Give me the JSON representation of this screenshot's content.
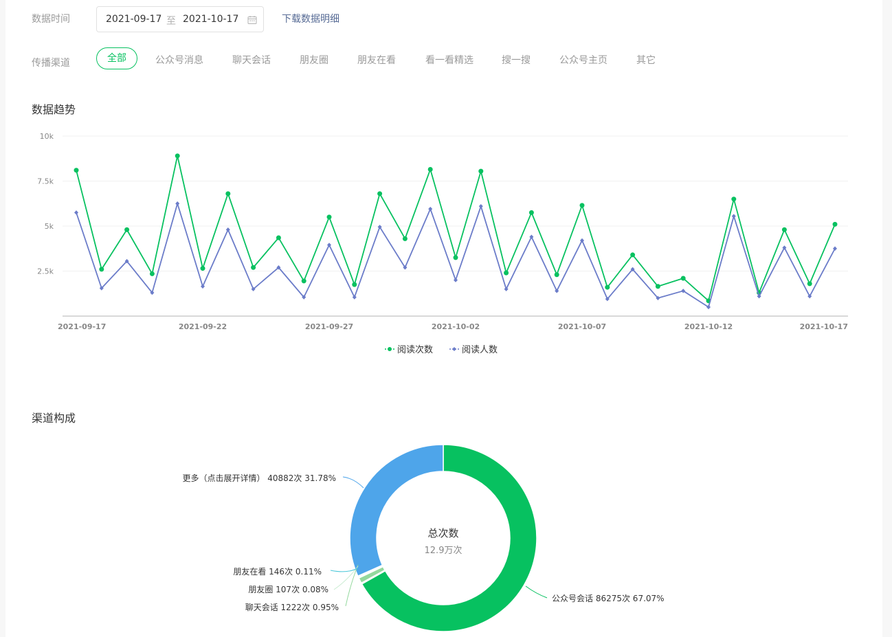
{
  "filters": {
    "time_label": "数据时间",
    "date_start": "2021-09-17",
    "date_separator": "至",
    "date_end": "2021-10-17",
    "download_link": "下载数据明细",
    "channel_label": "传播渠道",
    "channels": [
      "全部",
      "公众号消息",
      "聊天会话",
      "朋友圈",
      "朋友在看",
      "看一看精选",
      "搜一搜",
      "公众号主页",
      "其它"
    ],
    "active_channel": "全部"
  },
  "trend": {
    "title": "数据趋势"
  },
  "composition": {
    "title": "渠道构成"
  },
  "colors": {
    "accent": "#07c160",
    "read_count": "#07c160",
    "reader_count": "#6b7cc9",
    "link": "#576b95",
    "more": "#4ea5ea"
  },
  "chart_data": [
    {
      "type": "line",
      "x": [
        "2021-09-17",
        "2021-09-18",
        "2021-09-19",
        "2021-09-20",
        "2021-09-21",
        "2021-09-22",
        "2021-09-23",
        "2021-09-24",
        "2021-09-25",
        "2021-09-26",
        "2021-09-27",
        "2021-09-28",
        "2021-09-29",
        "2021-09-30",
        "2021-10-01",
        "2021-10-02",
        "2021-10-03",
        "2021-10-04",
        "2021-10-05",
        "2021-10-06",
        "2021-10-07",
        "2021-10-08",
        "2021-10-09",
        "2021-10-10",
        "2021-10-11",
        "2021-10-12",
        "2021-10-13",
        "2021-10-14",
        "2021-10-15",
        "2021-10-16",
        "2021-10-17"
      ],
      "x_tick_labels": [
        "2021-09-17",
        "2021-09-22",
        "2021-09-27",
        "2021-10-02",
        "2021-10-07",
        "2021-10-12",
        "2021-10-17"
      ],
      "y_tick_labels": [
        "2.5k",
        "5k",
        "7.5k",
        "10k"
      ],
      "ylim": [
        0,
        10000
      ],
      "grid": true,
      "legend_position": "bottom",
      "series": [
        {
          "name": "阅读次数",
          "color": "#07c160",
          "marker": "circle",
          "values": [
            8100,
            2600,
            4800,
            2350,
            8900,
            2650,
            6800,
            2700,
            4350,
            1950,
            5500,
            1750,
            6800,
            4300,
            8150,
            3250,
            8050,
            2400,
            5750,
            2300,
            6150,
            1600,
            3400,
            1650,
            2100,
            850,
            6500,
            1300,
            4800,
            1800,
            5100
          ]
        },
        {
          "name": "阅读人数",
          "color": "#6b7cc9",
          "marker": "diamond",
          "values": [
            5750,
            1550,
            3050,
            1300,
            6250,
            1650,
            4800,
            1500,
            2700,
            1050,
            3950,
            1050,
            4950,
            2700,
            5950,
            2000,
            6100,
            1500,
            4400,
            1400,
            4200,
            950,
            2600,
            1000,
            1400,
            500,
            5550,
            1100,
            3800,
            1100,
            3750
          ]
        }
      ]
    },
    {
      "type": "pie",
      "center_title": "总次数",
      "center_value": "12.9万次",
      "slices": [
        {
          "label": "公众号会话 86275次 67.07%",
          "value": 67.07,
          "color": "#07c160"
        },
        {
          "label": "",
          "value": 0.01,
          "color": "#a8e3b8"
        },
        {
          "label": "聊天会话 1222次 0.95%",
          "value": 0.95,
          "color": "#93d89d"
        },
        {
          "label": "朋友圈 107次 0.08%",
          "value": 0.08,
          "color": "#c8ebd0"
        },
        {
          "label": "朋友在看 146次 0.11%",
          "value": 0.11,
          "color": "#48c6d8"
        },
        {
          "label": "更多（点击展开详情） 40882次 31.78%",
          "value": 31.78,
          "color": "#4ea5ea"
        }
      ]
    }
  ]
}
